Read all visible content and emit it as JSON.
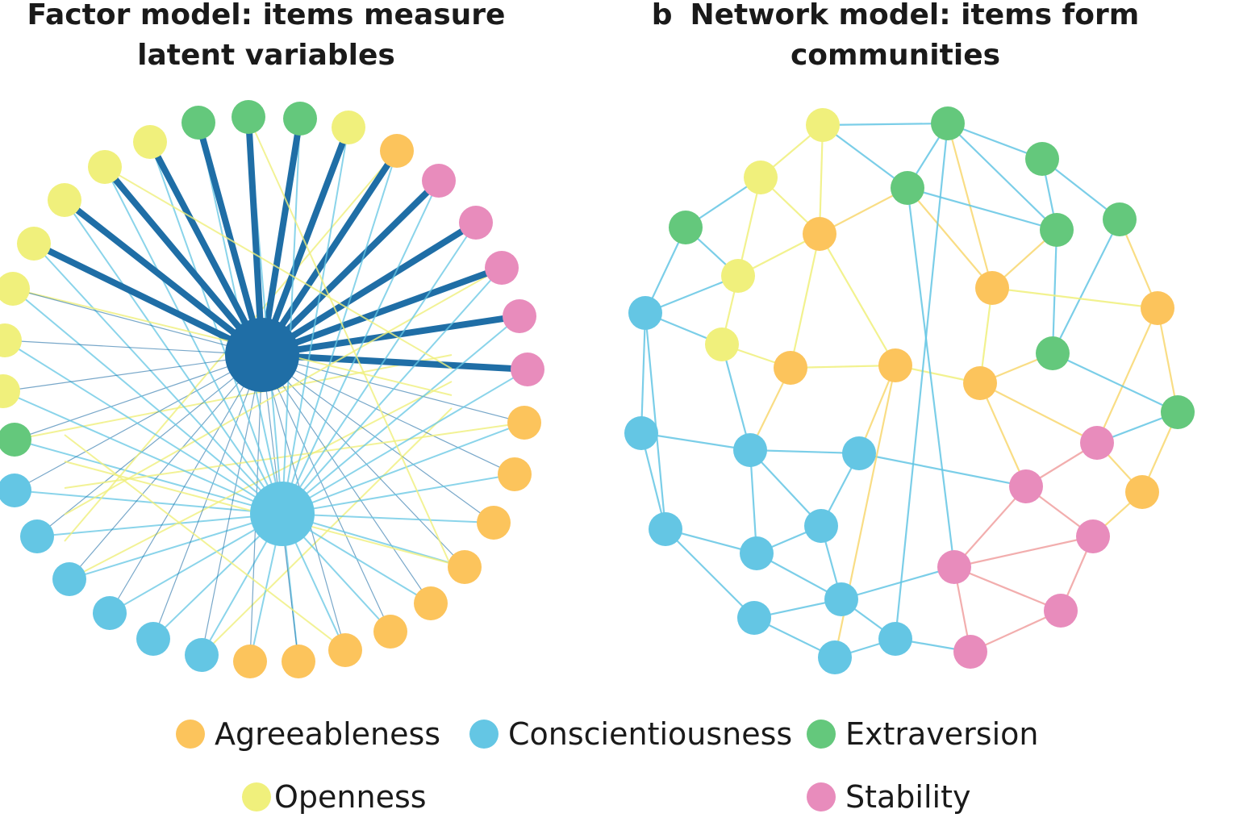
{
  "panel_a": {
    "letter": "",
    "title_line1": "Factor model: items measure",
    "title_line2": "latent variables"
  },
  "panel_b": {
    "letter": "b",
    "title_line1": "Network model: items form",
    "title_line2": "communities"
  },
  "colors": {
    "Agreeableness": "#fcc45c",
    "Conscientiousness": "#64c6e4",
    "Extraversion": "#64c87c",
    "Openness": "#f0f07c",
    "Stability": "#e88cbc",
    "factor_edge": "#1f6ea6"
  },
  "legend": [
    {
      "label": "Agreeableness",
      "trait": "Agreeableness"
    },
    {
      "label": "Conscientiousness",
      "trait": "Conscientiousness"
    },
    {
      "label": "Extraversion",
      "trait": "Extraversion"
    },
    {
      "label": "Openness",
      "trait": "Openness"
    },
    {
      "label": "Stability",
      "trait": "Stability"
    }
  ]
}
